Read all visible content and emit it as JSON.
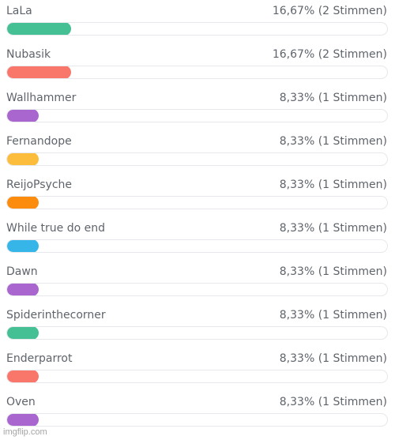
{
  "poll": {
    "max_percent": 16.67,
    "options": [
      {
        "label": "LaLa",
        "result": "16,67% (2 Stimmen)",
        "percent": 16.67,
        "color": "#45bf94"
      },
      {
        "label": "Nubasik",
        "result": "16,67% (2 Stimmen)",
        "percent": 16.67,
        "color": "#f8776a"
      },
      {
        "label": "Wallhammer",
        "result": "8,33% (1 Stimmen)",
        "percent": 8.33,
        "color": "#a966cf"
      },
      {
        "label": "Fernandope",
        "result": "8,33% (1 Stimmen)",
        "percent": 8.33,
        "color": "#fdbd3c"
      },
      {
        "label": "ReijoPsyche",
        "result": "8,33% (1 Stimmen)",
        "percent": 8.33,
        "color": "#fc8c0e"
      },
      {
        "label": "While true do end",
        "result": "8,33% (1 Stimmen)",
        "percent": 8.33,
        "color": "#36b6e8"
      },
      {
        "label": "Dawn",
        "result": "8,33% (1 Stimmen)",
        "percent": 8.33,
        "color": "#a966cf"
      },
      {
        "label": "Spiderinthecorner",
        "result": "8,33% (1 Stimmen)",
        "percent": 8.33,
        "color": "#45bf94"
      },
      {
        "label": "Enderparrot",
        "result": "8,33% (1 Stimmen)",
        "percent": 8.33,
        "color": "#f8776a"
      },
      {
        "label": "Oven",
        "result": "8,33% (1 Stimmen)",
        "percent": 8.33,
        "color": "#a966cf"
      }
    ]
  },
  "watermark": "imgflip.com"
}
